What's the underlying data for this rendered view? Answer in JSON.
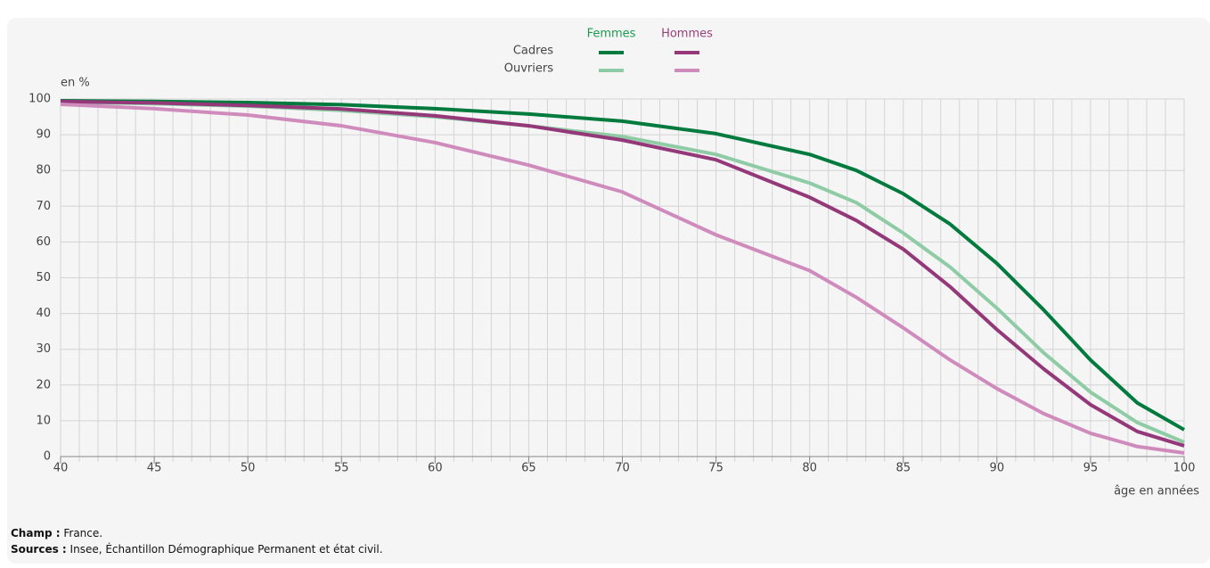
{
  "chart_data": {
    "type": "line",
    "y_label": "en %",
    "x_label": "âge en années",
    "legend_columns": [
      {
        "name": "Femmes",
        "color": "#1a9a4e"
      },
      {
        "name": "Hommes",
        "color": "#9b3e7a"
      }
    ],
    "legend_rows": [
      "Cadres",
      "Ouvriers"
    ],
    "x": [
      40,
      45,
      50,
      55,
      60,
      65,
      70,
      75,
      80,
      82.5,
      85,
      87.5,
      90,
      92.5,
      95,
      97.5,
      100
    ],
    "series": [
      {
        "name": "Femmes Cadres",
        "color": "#007a3d",
        "values": [
          99.5,
          99.3,
          99,
          98.4,
          97.3,
          95.8,
          93.8,
          90.3,
          84.5,
          80,
          73.5,
          65,
          54,
          41,
          27,
          15,
          7.5
        ]
      },
      {
        "name": "Femmes Ouvriers",
        "color": "#8fcca6",
        "values": [
          99.2,
          98.7,
          98,
          96.8,
          95,
          92.5,
          89.5,
          84.5,
          76.5,
          71,
          62.5,
          53,
          41.5,
          29,
          18,
          9.5,
          4
        ]
      },
      {
        "name": "Hommes Cadres",
        "color": "#94387a",
        "values": [
          99.3,
          98.9,
          98.2,
          97.2,
          95.3,
          92.5,
          88.5,
          83,
          72.5,
          66,
          58,
          47.5,
          35.5,
          24.5,
          14.5,
          7,
          3
        ]
      },
      {
        "name": "Hommes Ouvriers",
        "color": "#d08bbd",
        "values": [
          98.5,
          97.3,
          95.5,
          92.5,
          87.8,
          81.5,
          74,
          62,
          52,
          44.5,
          36,
          27,
          19,
          12,
          6.5,
          2.8,
          1
        ]
      }
    ],
    "xlim": [
      40,
      100
    ],
    "xticks": [
      40,
      45,
      50,
      55,
      60,
      65,
      70,
      75,
      80,
      85,
      90,
      95,
      100
    ],
    "xminorticks": [
      40,
      41,
      42,
      43,
      44,
      45,
      46,
      47,
      48,
      49,
      50,
      51,
      52,
      53,
      54,
      55,
      56,
      57,
      58,
      59,
      60,
      61,
      62,
      63,
      64,
      65,
      66,
      67,
      68,
      69,
      70,
      71,
      72,
      73,
      74,
      75,
      76,
      77,
      78,
      79,
      80,
      81,
      82,
      83,
      84,
      85,
      86,
      87,
      88,
      89,
      90,
      91,
      92,
      93,
      94,
      95,
      96,
      97,
      98,
      99,
      100
    ],
    "ylim": [
      0,
      100
    ],
    "yticks": [
      0,
      10,
      20,
      30,
      40,
      50,
      60,
      70,
      80,
      90,
      100
    ],
    "grid": true,
    "notes": [
      {
        "label": "Champ :",
        "text": "France."
      },
      {
        "label": "Sources :",
        "text": "Insee, Échantillon Démographique Permanent et état civil."
      }
    ]
  }
}
